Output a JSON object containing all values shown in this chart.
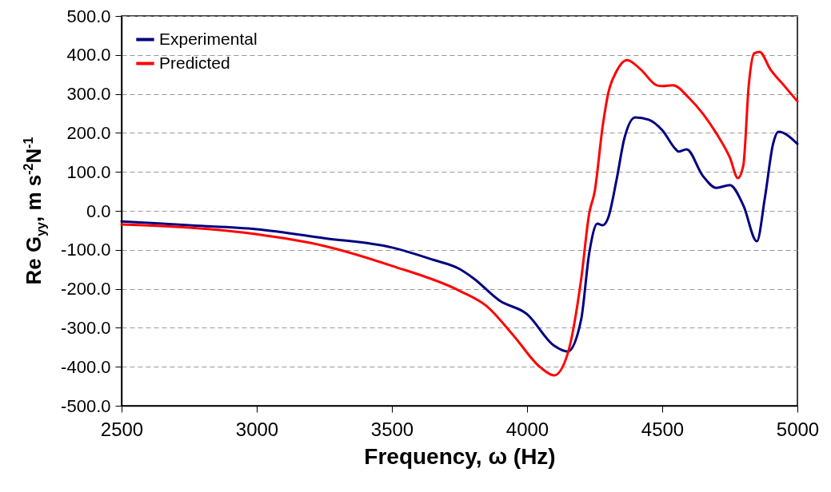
{
  "chart_data": {
    "type": "line",
    "xlabel": "Frequency, ω (Hz)",
    "ylabel": "Re G$_{yy}$, m s$^{-2}$N$^{-1}$",
    "xlim": [
      2500,
      5000
    ],
    "xticks": [
      2500,
      3000,
      3500,
      4000,
      4500,
      5000
    ],
    "ylim": [
      -500,
      500
    ],
    "yticks": [
      {
        "value": -500,
        "label": "-500.0"
      },
      {
        "value": -400,
        "label": "-400.0"
      },
      {
        "value": -300,
        "label": "-300.0"
      },
      {
        "value": -200,
        "label": "-200.0"
      },
      {
        "value": -100,
        "label": "-100.0"
      },
      {
        "value": 0,
        "label": "0.0"
      },
      {
        "value": 100,
        "label": "100.0"
      },
      {
        "value": 200,
        "label": "200.0"
      },
      {
        "value": 300,
        "label": "300.0"
      },
      {
        "value": 400,
        "label": "400.0"
      },
      {
        "value": 500,
        "label": "500.0"
      }
    ],
    "grid": "y",
    "legend": "top left",
    "line_style": "solid",
    "marker": "none",
    "series": [
      {
        "name": "Experimental",
        "color": "#000080",
        "x": [
          2500,
          2750,
          3000,
          3250,
          3500,
          3650,
          3750,
          3800,
          3900,
          4000,
          4100,
          4150,
          4200,
          4230,
          4260,
          4280,
          4300,
          4330,
          4360,
          4400,
          4450,
          4500,
          4550,
          4560,
          4590,
          4650,
          4700,
          4750,
          4800,
          4850,
          4880,
          4910,
          4930,
          5000
        ],
        "values": [
          -27,
          -37,
          -47,
          -70,
          -94,
          -125,
          -149,
          -172,
          -231,
          -265,
          -346,
          -361,
          -279,
          -108,
          -33,
          -37,
          -18,
          76,
          186,
          240,
          234,
          207,
          158,
          152,
          158,
          90,
          59,
          66,
          14,
          -78,
          35,
          172,
          203,
          172
        ]
      },
      {
        "name": "Predicted",
        "color": "#ff0000",
        "x": [
          2500,
          3000,
          3250,
          3500,
          3750,
          3850,
          3950,
          4050,
          4100,
          4150,
          4200,
          4230,
          4250,
          4280,
          4300,
          4330,
          4370,
          4420,
          4480,
          4500,
          4540,
          4600,
          4700,
          4750,
          4780,
          4800,
          4820,
          4840,
          4860,
          4900,
          4950,
          5000
        ],
        "values": [
          -35,
          -60,
          -90,
          -141,
          -205,
          -244,
          -320,
          -402,
          -422,
          -367,
          -176,
          -6,
          49,
          219,
          301,
          357,
          387,
          363,
          322,
          320,
          322,
          289,
          199,
          137,
          84,
          117,
          322,
          404,
          408,
          363,
          322,
          281
        ]
      }
    ]
  }
}
